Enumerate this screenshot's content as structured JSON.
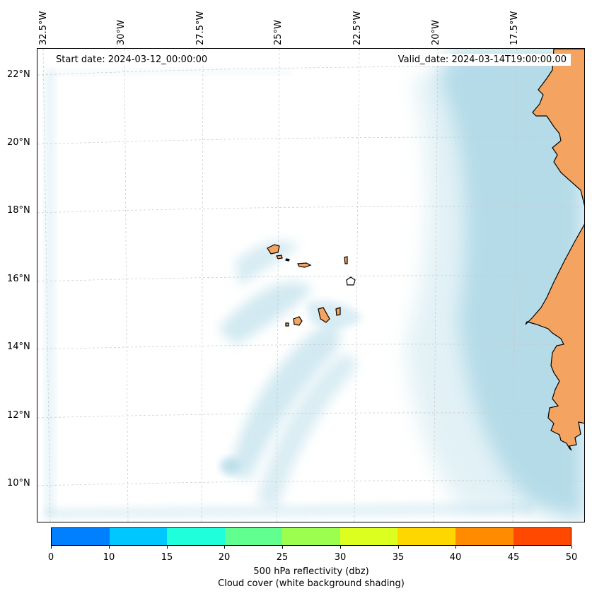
{
  "header": {
    "start_date": "Start date: 2024-03-12_00:00:00",
    "valid_date": "Valid_date: 2024-03-14T19:00:00.00"
  },
  "map": {
    "lat_labels": [
      "22°N",
      "20°N",
      "18°N",
      "16°N",
      "14°N",
      "12°N",
      "10°N"
    ],
    "lon_labels": [
      "32.5°W",
      "30°W",
      "27.5°W",
      "25°W",
      "22.5°W",
      "20°W",
      "17.5°W"
    ],
    "land_color": "#f4a460",
    "cloud_color": "#add8e6",
    "grid_color": "#c8c8c8"
  },
  "colorbar": {
    "label": "500 hPa reflectivity (dbz)",
    "note": "Cloud cover (white background shading)",
    "ticks": [
      "0",
      "10",
      "15",
      "20",
      "25",
      "30",
      "35",
      "40",
      "45",
      "50"
    ],
    "colors": [
      "#0080ff",
      "#00c8ff",
      "#20ffdc",
      "#60ff90",
      "#9cff50",
      "#dcff20",
      "#ffd700",
      "#ff8c00",
      "#ff4800"
    ]
  }
}
